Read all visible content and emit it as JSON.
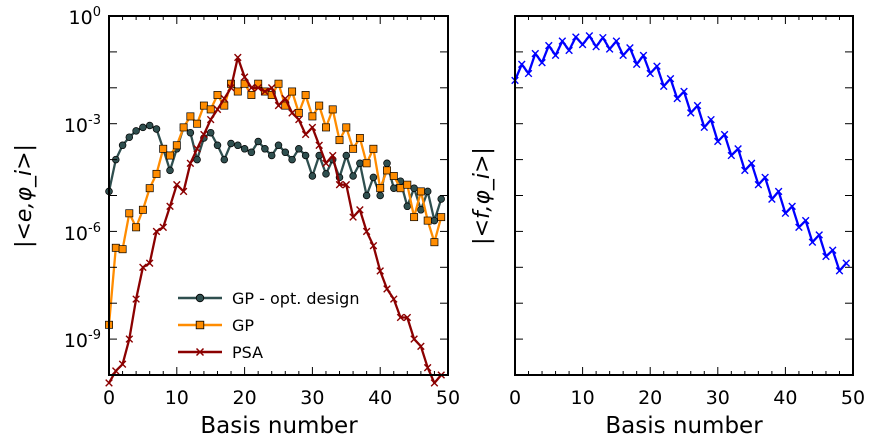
{
  "chart_data": [
    {
      "type": "line",
      "xlabel": "Basis number",
      "ylabel": "|<e,φ_i>|",
      "xlim": [
        0,
        50
      ],
      "ylim_log10": [
        -10,
        0
      ],
      "yscale": "log",
      "x_ticks": [
        "0",
        "10",
        "20",
        "30",
        "40",
        "50"
      ],
      "y_ticks": [
        {
          "base": "10",
          "exp": "0"
        },
        {
          "base": "10",
          "exp": "-3"
        },
        {
          "base": "10",
          "exp": "-6"
        },
        {
          "base": "10",
          "exp": "-9"
        }
      ],
      "legend_position": "bottom-center",
      "series": [
        {
          "name": "GP - opt. design",
          "color": "#2f4f4f",
          "marker": "circle",
          "x": [
            0,
            1,
            2,
            3,
            4,
            5,
            6,
            7,
            8,
            9,
            10,
            11,
            12,
            13,
            14,
            15,
            16,
            17,
            18,
            19,
            20,
            21,
            22,
            23,
            24,
            25,
            26,
            27,
            28,
            29,
            30,
            31,
            32,
            33,
            34,
            35,
            36,
            37,
            38,
            39,
            40,
            41,
            42,
            43,
            44,
            45,
            46,
            47,
            48,
            49
          ],
          "values": [
            1.3e-05,
            0.0001,
            0.00025,
            0.00042,
            0.00063,
            0.00079,
            0.00089,
            0.00071,
            0.0002,
            5e-05,
            0.0002,
            0.00079,
            0.00056,
            0.0001,
            0.0004,
            0.00056,
            0.00025,
            0.0001,
            0.00028,
            0.00025,
            0.0002,
            0.00016,
            0.00032,
            0.0002,
            0.00013,
            0.00025,
            0.00016,
            0.0001,
            0.0002,
            0.00013,
            3.5e-05,
            0.00013,
            4e-05,
            0.0001,
            3.2e-05,
            0.00013,
            3.5e-05,
            7.9e-05,
            1e-05,
            3.2e-05,
            1e-05,
            7.9e-05,
            1.6e-05,
            2.5e-05,
            5e-06,
            1.6e-05,
            4e-06,
            1.3e-05,
            2e-06,
            8e-06
          ]
        },
        {
          "name": "GP",
          "color": "#ff8c00",
          "marker": "square",
          "x": [
            0,
            1,
            2,
            3,
            4,
            5,
            6,
            7,
            8,
            9,
            10,
            11,
            12,
            13,
            14,
            15,
            16,
            17,
            18,
            19,
            20,
            21,
            22,
            23,
            24,
            25,
            26,
            27,
            28,
            29,
            30,
            31,
            32,
            33,
            34,
            35,
            36,
            37,
            38,
            39,
            40,
            41,
            42,
            43,
            44,
            45,
            46,
            47,
            48,
            49
          ],
          "values": [
            2.5e-09,
            3.5e-07,
            3.2e-07,
            3.2e-06,
            1.3e-06,
            4e-06,
            1.6e-05,
            4e-05,
            0.0002,
            0.00013,
            0.00025,
            0.00079,
            0.0016,
            0.001,
            0.0032,
            0.0025,
            0.0063,
            0.0032,
            0.013,
            0.0079,
            0.013,
            0.0063,
            0.013,
            0.0079,
            0.0063,
            0.013,
            0.0032,
            0.0079,
            0.002,
            0.0063,
            0.0016,
            0.0032,
            0.00079,
            0.0025,
            0.00035,
            0.00079,
            0.0002,
            0.0004,
            7.9e-05,
            0.0002,
            1.6e-05,
            5e-05,
            3.5e-05,
            1.6e-05,
            2e-05,
            2.5e-06,
            1.3e-05,
            2e-06,
            5e-07,
            2.5e-06
          ]
        },
        {
          "name": "PSA",
          "color": "#8b0000",
          "marker": "x",
          "x": [
            0,
            1,
            2,
            3,
            4,
            5,
            6,
            7,
            8,
            9,
            10,
            11,
            12,
            13,
            14,
            15,
            16,
            17,
            18,
            19,
            20,
            21,
            22,
            23,
            24,
            25,
            26,
            27,
            28,
            29,
            30,
            31,
            32,
            33,
            34,
            35,
            36,
            37,
            38,
            39,
            40,
            41,
            42,
            43,
            44,
            45,
            46,
            47,
            48,
            49
          ],
          "values": [
            6e-11,
            1.3e-10,
            2e-10,
            1e-09,
            1.3e-08,
            1e-07,
            1.3e-07,
            1e-06,
            1.3e-06,
            5e-06,
            2e-05,
            1.3e-05,
            7.9e-05,
            0.0002,
            0.0005,
            0.0013,
            0.0025,
            0.005,
            0.01,
            0.07,
            0.02,
            0.01,
            0.01,
            0.0079,
            0.01,
            0.0032,
            0.005,
            0.002,
            0.0013,
            0.0005,
            0.00079,
            0.00025,
            7.9e-05,
            0.00013,
            2e-05,
            2e-05,
            2.5e-06,
            4e-06,
            1e-06,
            4e-07,
            7.9e-08,
            2.5e-08,
            1.3e-08,
            4e-09,
            4e-09,
            1e-09,
            6.3e-10,
            1.6e-10,
            6e-11,
            1e-10
          ]
        }
      ]
    },
    {
      "type": "line",
      "xlabel": "Basis number",
      "ylabel": "|<f,φ_i>|",
      "xlim": [
        0,
        50
      ],
      "ylim_log10": [
        -10,
        0
      ],
      "yscale": "log",
      "x_ticks": [
        "0",
        "10",
        "20",
        "30",
        "40",
        "50"
      ],
      "series": [
        {
          "name": "",
          "color": "#0000ff",
          "marker": "x",
          "x": [
            0,
            1,
            2,
            3,
            4,
            5,
            6,
            7,
            8,
            9,
            10,
            11,
            12,
            13,
            14,
            15,
            16,
            17,
            18,
            19,
            20,
            21,
            22,
            23,
            24,
            25,
            26,
            27,
            28,
            29,
            30,
            31,
            32,
            33,
            34,
            35,
            36,
            37,
            38,
            39,
            40,
            41,
            42,
            43,
            44,
            45,
            46,
            47,
            48,
            49
          ],
          "values": [
            0.016,
            0.045,
            0.025,
            0.09,
            0.05,
            0.15,
            0.08,
            0.2,
            0.11,
            0.26,
            0.16,
            0.28,
            0.14,
            0.25,
            0.12,
            0.2,
            0.08,
            0.13,
            0.045,
            0.08,
            0.025,
            0.04,
            0.011,
            0.018,
            0.005,
            0.0079,
            0.002,
            0.0032,
            0.00079,
            0.0013,
            0.00032,
            0.0005,
            0.00013,
            0.0002,
            5e-05,
            7.9e-05,
            2e-05,
            3.2e-05,
            7.9e-06,
            1.3e-05,
            3.2e-06,
            5e-06,
            1.3e-06,
            2e-06,
            5e-07,
            8e-07,
            2e-07,
            3e-07,
            8e-08,
            1.3e-07
          ]
        }
      ]
    }
  ]
}
